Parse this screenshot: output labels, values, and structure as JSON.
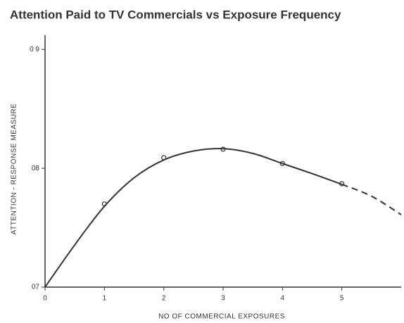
{
  "chart_data": {
    "type": "line",
    "title": "Attention Paid to TV Commercials vs Exposure Frequency",
    "xlabel": "NO OF COMMERCIAL EXPOSURES",
    "ylabel": "ATTENTION - RESPONSE MEASURE",
    "xlim": [
      0,
      6
    ],
    "ylim": [
      0.7,
      0.912
    ],
    "xticks": [
      0,
      1,
      2,
      3,
      4,
      5
    ],
    "yticks": [
      {
        "value": 0.7,
        "label": "07"
      },
      {
        "value": 0.8,
        "label": "08"
      },
      {
        "value": 0.9,
        "label": "0 9"
      }
    ],
    "series": [
      {
        "type": "scatter",
        "color": "#333333",
        "x": [
          1,
          2,
          3,
          4,
          5
        ],
        "values": [
          0.77,
          0.809,
          0.816,
          0.804,
          0.787
        ]
      },
      {
        "type": "line",
        "color": "#333333",
        "dashed": false,
        "x": [
          0,
          0.5,
          1,
          1.5,
          2,
          2.5,
          3,
          3.5,
          4,
          4.5,
          5
        ],
        "values": [
          0.7,
          0.7355,
          0.768,
          0.792,
          0.807,
          0.8145,
          0.8165,
          0.8125,
          0.804,
          0.7955,
          0.7865
        ]
      },
      {
        "type": "line",
        "color": "#333333",
        "dashed": true,
        "x": [
          5,
          5.5,
          6
        ],
        "values": [
          0.7865,
          0.7765,
          0.761
        ]
      }
    ]
  }
}
